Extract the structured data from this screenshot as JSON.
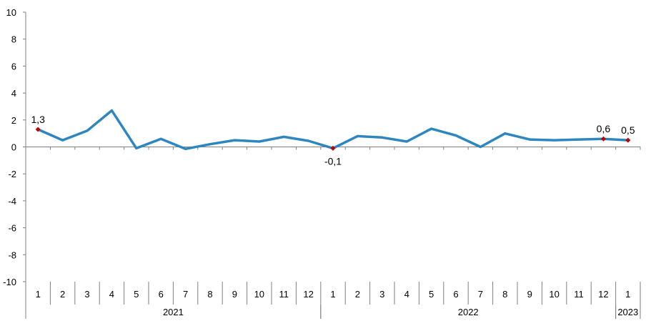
{
  "chart_data": {
    "type": "line",
    "title": "",
    "xlabel": "",
    "ylabel": "",
    "ylim": [
      -10,
      10
    ],
    "yticks": [
      10,
      8,
      6,
      4,
      2,
      0,
      -2,
      -4,
      -6,
      -8,
      -10
    ],
    "grid": false,
    "legend": "none",
    "line_color": "#2E86C1",
    "marker_color": "#C00000",
    "categories": [
      "1",
      "2",
      "3",
      "4",
      "5",
      "6",
      "7",
      "8",
      "9",
      "10",
      "11",
      "12",
      "1",
      "2",
      "3",
      "4",
      "5",
      "6",
      "7",
      "8",
      "9",
      "10",
      "11",
      "12",
      "1"
    ],
    "years": [
      {
        "label": "2021",
        "start": 0,
        "end": 11
      },
      {
        "label": "2022",
        "start": 12,
        "end": 23
      },
      {
        "label": "2023",
        "start": 24,
        "end": 24
      }
    ],
    "series": [
      {
        "values": [
          1.3,
          0.5,
          1.2,
          2.7,
          -0.1,
          0.6,
          -0.15,
          0.2,
          0.5,
          0.4,
          0.75,
          0.45,
          -0.1,
          0.8,
          0.7,
          0.4,
          1.35,
          0.85,
          0.0,
          1.0,
          0.55,
          0.5,
          0.55,
          0.6,
          0.5
        ]
      }
    ],
    "annotations": [
      {
        "index": 0,
        "text": "1,3",
        "position": "above"
      },
      {
        "index": 12,
        "text": "-0,1",
        "position": "below"
      },
      {
        "index": 23,
        "text": "0,6",
        "position": "above"
      },
      {
        "index": 24,
        "text": "0,5",
        "position": "above"
      }
    ]
  }
}
